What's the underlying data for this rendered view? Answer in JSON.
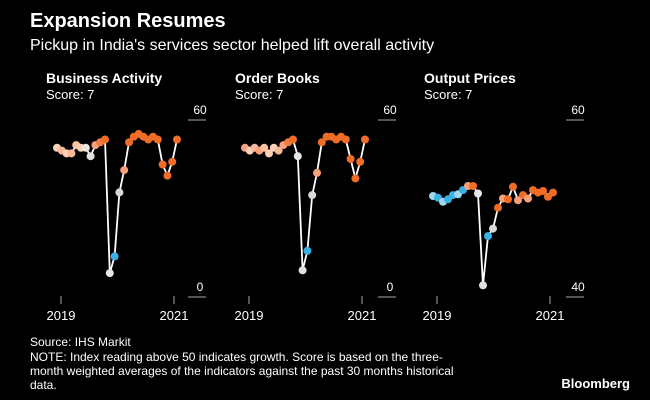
{
  "header": {
    "title": "Expansion Resumes",
    "subtitle": "Pickup in India's services sector helped lift overall activity"
  },
  "chart_data": [
    {
      "type": "line",
      "title": "Business Activity",
      "score": "Score: 7",
      "ylim": [
        0,
        60
      ],
      "y_ticks": [
        "60",
        "0"
      ],
      "x_ticks": [
        "2019",
        "2021"
      ],
      "x_start": 2019.0,
      "x_end": 2021.17,
      "values": [
        50,
        49,
        48,
        48,
        51,
        50,
        50,
        47,
        51,
        52,
        53,
        5,
        11,
        34,
        42,
        52,
        54,
        55,
        54,
        53,
        54,
        53,
        44,
        40,
        45,
        53
      ],
      "colors": [
        "#fdd0b5",
        "#f7b89a",
        "#fdd0b5",
        "#f7b89a",
        "#fbc2a2",
        "#fdd0b5",
        "#f0e6de",
        "#e0e0e0",
        "#f7a07a",
        "#f27a40",
        "#ef6d26",
        "#e6e6e6",
        "#3ab1e3",
        "#d8d8d8",
        "#f7a07a",
        "#ef6d26",
        "#ef6d26",
        "#ef6d26",
        "#ef6d26",
        "#ef6d26",
        "#ef6d26",
        "#ef6d26",
        "#ef6d26",
        "#ef6d26",
        "#ef6d26",
        "#ef6d26"
      ]
    },
    {
      "type": "line",
      "title": "Order Books",
      "score": "Score: 7",
      "ylim": [
        0,
        60
      ],
      "y_ticks": [
        "60",
        "0"
      ],
      "x_ticks": [
        "2019",
        "2021"
      ],
      "x_start": 2019.0,
      "x_end": 2021.17,
      "values": [
        50,
        49,
        50,
        49,
        50,
        48,
        50,
        49,
        51,
        52,
        53,
        47,
        6,
        13,
        33,
        41,
        52,
        54,
        54,
        53,
        54,
        53,
        46,
        39,
        45,
        53
      ],
      "colors": [
        "#f7a07a",
        "#fdd0b5",
        "#f7b89a",
        "#f7a07a",
        "#fbc2a2",
        "#fdd0b5",
        "#fdd0b5",
        "#f7b89a",
        "#f7a07a",
        "#f27a40",
        "#ef6d26",
        "#e6e6e6",
        "#e0e0e0",
        "#3ab1e3",
        "#d8d8d8",
        "#f7a07a",
        "#ef6d26",
        "#ef6d26",
        "#ef6d26",
        "#ef6d26",
        "#ef6d26",
        "#ef6d26",
        "#ef6d26",
        "#ef6d26",
        "#ef6d26",
        "#ef6d26"
      ]
    },
    {
      "type": "line",
      "title": "Output Prices",
      "score": "Score: 7",
      "ylim": [
        40,
        60
      ],
      "y_ticks": [
        "60",
        "40"
      ],
      "x_ticks": [
        "2019",
        "2021"
      ],
      "x_start": 2019.0,
      "x_end": 2021.17,
      "values": [
        50.9,
        50.7,
        50.2,
        50.5,
        51.0,
        51.1,
        51.6,
        52.1,
        52.1,
        51.2,
        40.2,
        46.1,
        47.0,
        49.5,
        50.6,
        50.5,
        52.0,
        50.4,
        51.0,
        50.6,
        51.6,
        51.3,
        51.5,
        50.8,
        51.3
      ],
      "colors": [
        "#9fd6f0",
        "#3ab1e3",
        "#9fd6f0",
        "#3ab1e3",
        "#3ab1e3",
        "#9fd6f0",
        "#3ab1e3",
        "#f7a07a",
        "#ef6d26",
        "#e6e6e6",
        "#e0e0e0",
        "#3ab1e3",
        "#d8d8d8",
        "#ef6d26",
        "#f7a07a",
        "#ef6d26",
        "#ef6d26",
        "#f7a07a",
        "#ef6d26",
        "#f7a07a",
        "#ef6d26",
        "#ef6d26",
        "#ef6d26",
        "#ef6d26",
        "#ef6d26"
      ]
    }
  ],
  "footer": {
    "source": "Source: IHS Markit",
    "note_1": "NOTE: Index reading above 50 indicates growth. Score is based on the three-",
    "note_2": "month weighted averages of the indicators against the past 30 months historical",
    "note_3": "data.",
    "brand": "Bloomberg"
  }
}
